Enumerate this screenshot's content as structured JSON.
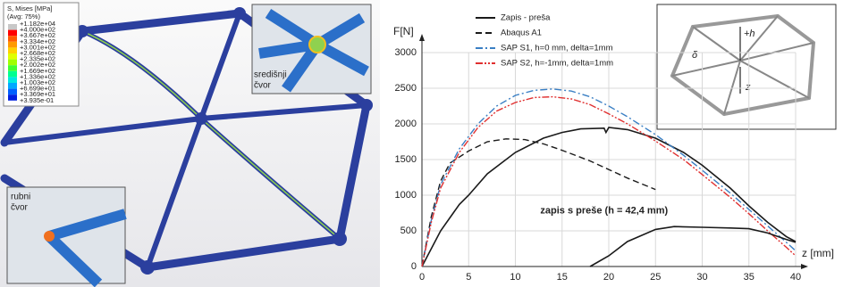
{
  "fem_figure": {
    "legend_title": "S, Mises [MPa]",
    "legend_subtitle": "(Avg: 75%)",
    "legend_values": [
      "+1.182e+04",
      "+4.000e+02",
      "+3.667e+02",
      "+3.334e+02",
      "+3.001e+02",
      "+2.668e+02",
      "+2.335e+02",
      "+2.002e+02",
      "+1.669e+02",
      "+1.336e+02",
      "+1.003e+02",
      "+6.699e+01",
      "+3.369e+01",
      "+3.935e-01"
    ],
    "inset_center": [
      "središnji",
      "čvor"
    ],
    "inset_edge": [
      "rubni",
      "čvor"
    ]
  },
  "chart_data": {
    "type": "line",
    "ylabel": "F[N]",
    "xlabel": "z [mm]",
    "xlim": [
      0,
      40
    ],
    "xticks": [
      0,
      5,
      10,
      15,
      20,
      25,
      30,
      35,
      40
    ],
    "ylim": [
      0,
      3000
    ],
    "yticks": [
      0,
      500,
      1000,
      1500,
      2000,
      2500,
      3000
    ],
    "grid": true,
    "legend": "top-left",
    "series": [
      {
        "name": "Zapis - preša",
        "color": "#1a1a1a",
        "dash": "solid",
        "x": [
          0,
          2,
          4,
          5,
          7,
          10,
          13,
          15,
          17,
          19.5,
          19.7,
          20,
          22,
          25,
          28,
          30,
          33,
          35,
          37,
          39,
          40
        ],
        "values": [
          0,
          500,
          870,
          1000,
          1300,
          1600,
          1800,
          1880,
          1930,
          1940,
          1880,
          1950,
          1920,
          1800,
          1600,
          1420,
          1100,
          850,
          620,
          420,
          350
        ]
      },
      {
        "name": "Abaqus A1",
        "color": "#1a1a1a",
        "dash": "dashed",
        "x": [
          0,
          1,
          2,
          3,
          5,
          7,
          9,
          11,
          13,
          15,
          18,
          20,
          22,
          25
        ],
        "values": [
          0,
          700,
          1200,
          1450,
          1620,
          1750,
          1790,
          1780,
          1720,
          1630,
          1480,
          1360,
          1240,
          1080
        ]
      },
      {
        "name": "SAP S1, h=0 mm, delta=1mm",
        "color": "#3a7fc4",
        "dash": "dashdot",
        "x": [
          0,
          1,
          2,
          4,
          6,
          8,
          10,
          12,
          14,
          16,
          18,
          20,
          22,
          25,
          28,
          30,
          33,
          35,
          37,
          39,
          40
        ],
        "values": [
          0,
          650,
          1150,
          1650,
          2000,
          2250,
          2400,
          2470,
          2490,
          2460,
          2380,
          2250,
          2100,
          1850,
          1560,
          1350,
          1030,
          800,
          570,
          340,
          220
        ]
      },
      {
        "name": "SAP S2, h=-1mm, delta=1mm",
        "color": "#e03030",
        "dash": "dashdotdot",
        "x": [
          0,
          1,
          2,
          4,
          6,
          8,
          10,
          12,
          14,
          16,
          18,
          20,
          22,
          25,
          28,
          30,
          33,
          35,
          37,
          39,
          40
        ],
        "values": [
          0,
          620,
          1100,
          1600,
          1950,
          2180,
          2300,
          2370,
          2380,
          2350,
          2270,
          2140,
          2000,
          1760,
          1500,
          1290,
          970,
          740,
          500,
          270,
          150
        ]
      },
      {
        "name": "zapis s preše (h = 42,4 mm)",
        "color": "#1a1a1a",
        "dash": "solid",
        "in_legend": false,
        "x": [
          18,
          20,
          22,
          25,
          27,
          30,
          33,
          35,
          37,
          39,
          40
        ],
        "values": [
          0,
          150,
          350,
          520,
          560,
          550,
          540,
          530,
          470,
          380,
          340
        ]
      }
    ],
    "inset_labels": [
      "+h",
      "δ",
      "z"
    ]
  }
}
